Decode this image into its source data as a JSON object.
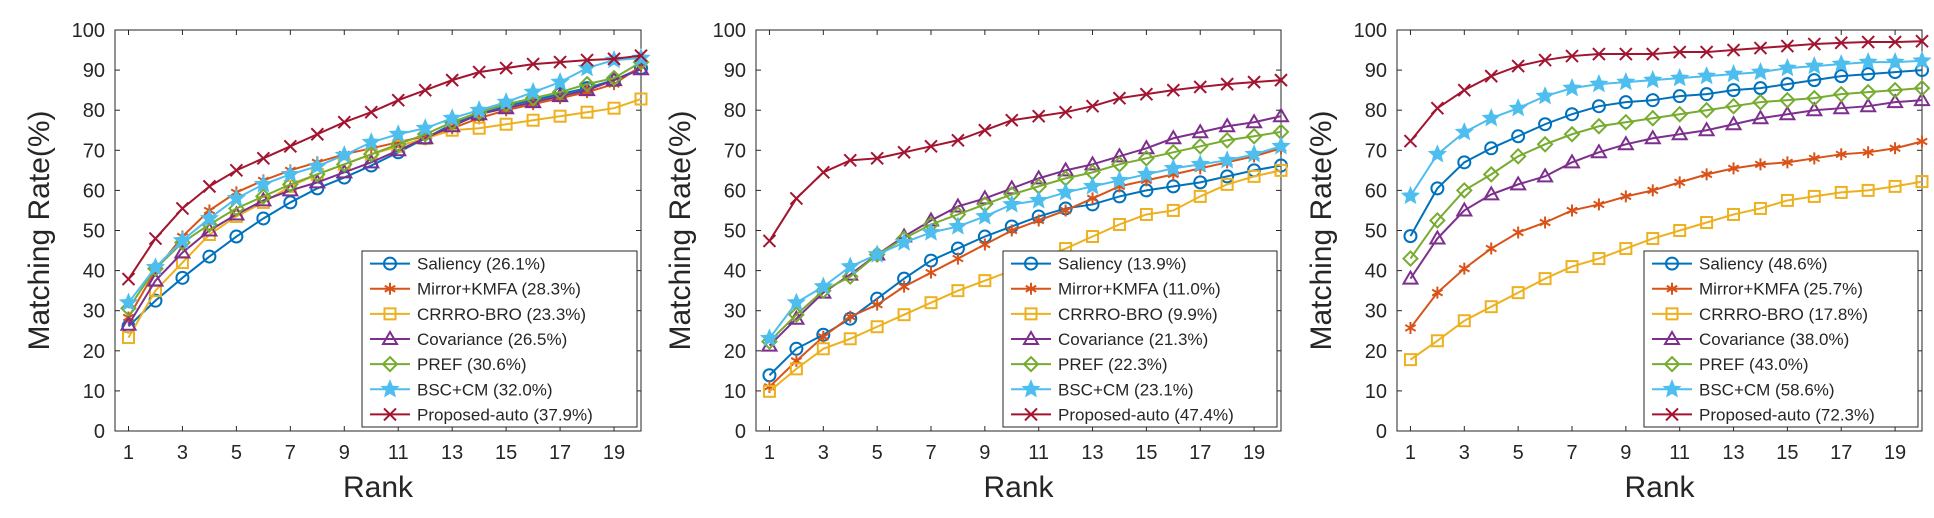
{
  "chart_data": [
    {
      "type": "line",
      "xlabel": "Rank",
      "ylabel": "Matching Rate(%)",
      "xlim": [
        0.5,
        20
      ],
      "ylim": [
        0,
        100
      ],
      "xticks": [
        "1",
        "3",
        "5",
        "7",
        "9",
        "11",
        "13",
        "15",
        "17",
        "19"
      ],
      "yticks": [
        "0",
        "10",
        "20",
        "30",
        "40",
        "50",
        "60",
        "70",
        "80",
        "90",
        "100"
      ],
      "grid": false,
      "legend": "bottom-right",
      "x": [
        1,
        2,
        3,
        4,
        5,
        6,
        7,
        8,
        9,
        10,
        11,
        12,
        13,
        14,
        15,
        16,
        17,
        18,
        19,
        20
      ],
      "series": [
        {
          "name": "Saliency (26.1%)",
          "values": [
            26.1,
            32.5,
            38.2,
            43.5,
            48.5,
            53.0,
            57.0,
            60.5,
            63.2,
            66.2,
            69.5,
            73.0,
            76.5,
            79.0,
            81.0,
            82.5,
            84.0,
            85.5,
            87.5,
            90.5
          ]
        },
        {
          "name": "Mirror+KMFA (28.3%)",
          "values": [
            28.3,
            40.0,
            48.5,
            55.0,
            59.5,
            62.5,
            65.0,
            67.0,
            69.0,
            70.5,
            72.0,
            73.5,
            75.5,
            78.0,
            80.0,
            81.5,
            83.0,
            84.5,
            86.5,
            91.0
          ]
        },
        {
          "name": "CRRRO-BRO (23.3%)",
          "values": [
            23.3,
            35.0,
            42.0,
            49.0,
            53.5,
            57.0,
            61.0,
            64.0,
            66.5,
            69.0,
            71.0,
            73.0,
            75.0,
            75.5,
            76.5,
            77.5,
            78.5,
            79.5,
            80.5,
            82.8
          ]
        },
        {
          "name": "Covariance (26.5%)",
          "values": [
            26.5,
            37.5,
            44.5,
            50.0,
            54.0,
            57.5,
            60.0,
            62.0,
            64.5,
            67.0,
            70.0,
            73.0,
            76.0,
            79.0,
            80.5,
            82.0,
            83.5,
            85.0,
            87.5,
            90.2
          ]
        },
        {
          "name": "PREF (30.6%)",
          "values": [
            30.6,
            40.5,
            47.0,
            51.5,
            55.5,
            58.5,
            61.5,
            64.0,
            66.5,
            69.0,
            71.5,
            74.0,
            77.0,
            79.5,
            81.5,
            83.0,
            84.5,
            86.5,
            88.0,
            92.0
          ]
        },
        {
          "name": "BSC+CM (32.0%)",
          "values": [
            32.0,
            40.8,
            47.5,
            53.0,
            58.0,
            61.5,
            64.0,
            66.0,
            68.8,
            72.0,
            74.0,
            75.5,
            78.0,
            80.0,
            82.0,
            84.5,
            87.0,
            90.5,
            92.5,
            93.0
          ]
        },
        {
          "name": "Proposed-auto (37.9%)",
          "values": [
            37.9,
            48.0,
            55.5,
            61.0,
            65.0,
            68.0,
            71.0,
            74.0,
            77.0,
            79.5,
            82.5,
            85.0,
            87.5,
            89.5,
            90.5,
            91.5,
            92.0,
            92.5,
            92.8,
            93.6
          ]
        }
      ]
    },
    {
      "type": "line",
      "xlabel": "Rank",
      "ylabel": "Matching Rate(%)",
      "xlim": [
        0.5,
        20
      ],
      "ylim": [
        0,
        100
      ],
      "xticks": [
        "1",
        "3",
        "5",
        "7",
        "9",
        "11",
        "13",
        "15",
        "17",
        "19"
      ],
      "yticks": [
        "0",
        "10",
        "20",
        "30",
        "40",
        "50",
        "60",
        "70",
        "80",
        "90",
        "100"
      ],
      "grid": false,
      "legend": "bottom-right",
      "x": [
        1,
        2,
        3,
        4,
        5,
        6,
        7,
        8,
        9,
        10,
        11,
        12,
        13,
        14,
        15,
        16,
        17,
        18,
        19,
        20
      ],
      "series": [
        {
          "name": "Saliency (13.9%)",
          "values": [
            13.9,
            20.5,
            24.0,
            28.0,
            33.0,
            38.0,
            42.5,
            45.5,
            48.5,
            51.0,
            53.5,
            55.5,
            56.5,
            58.5,
            60.0,
            61.0,
            62.0,
            63.5,
            65.0,
            66.2
          ]
        },
        {
          "name": "Mirror+KMFA (11.0%)",
          "values": [
            11.0,
            17.5,
            23.5,
            28.5,
            31.5,
            36.0,
            39.5,
            43.0,
            46.5,
            50.0,
            52.5,
            55.0,
            58.0,
            61.0,
            62.5,
            64.0,
            65.5,
            67.0,
            68.5,
            70.5
          ]
        },
        {
          "name": "CRRRO-BRO (9.9%)",
          "values": [
            9.9,
            15.5,
            20.5,
            23.0,
            26.0,
            29.0,
            32.0,
            35.0,
            37.5,
            40.0,
            43.0,
            45.5,
            48.5,
            51.5,
            54.0,
            55.0,
            58.5,
            61.5,
            63.5,
            65.0
          ]
        },
        {
          "name": "Covariance (21.3%)",
          "values": [
            21.3,
            28.0,
            34.5,
            39.0,
            44.0,
            48.5,
            52.5,
            56.0,
            58.0,
            60.5,
            63.0,
            65.0,
            66.5,
            68.5,
            70.5,
            73.0,
            74.5,
            76.0,
            77.0,
            78.5
          ]
        },
        {
          "name": "PREF (22.3%)",
          "values": [
            22.3,
            29.0,
            35.0,
            38.5,
            44.0,
            48.0,
            51.5,
            54.0,
            56.5,
            59.0,
            61.0,
            63.0,
            64.5,
            66.5,
            68.0,
            69.5,
            71.0,
            72.5,
            73.5,
            74.6
          ]
        },
        {
          "name": "BSC+CM (23.1%)",
          "values": [
            23.1,
            32.0,
            36.0,
            41.0,
            44.0,
            47.0,
            49.5,
            51.0,
            53.5,
            56.5,
            57.5,
            59.5,
            61.0,
            62.5,
            64.0,
            65.5,
            66.5,
            67.5,
            69.0,
            71.0
          ]
        },
        {
          "name": "Proposed-auto (47.4%)",
          "values": [
            47.4,
            58.0,
            64.5,
            67.5,
            68.0,
            69.5,
            71.0,
            72.5,
            75.0,
            77.5,
            78.5,
            79.5,
            81.0,
            83.0,
            84.0,
            85.0,
            85.8,
            86.5,
            87.0,
            87.5
          ]
        }
      ]
    },
    {
      "type": "line",
      "xlabel": "Rank",
      "ylabel": "Matching Rate(%)",
      "xlim": [
        0.5,
        20
      ],
      "ylim": [
        0,
        100
      ],
      "xticks": [
        "1",
        "3",
        "5",
        "7",
        "9",
        "11",
        "13",
        "15",
        "17",
        "19"
      ],
      "yticks": [
        "0",
        "10",
        "20",
        "30",
        "40",
        "50",
        "60",
        "70",
        "80",
        "90",
        "100"
      ],
      "grid": false,
      "legend": "bottom-right",
      "x": [
        1,
        2,
        3,
        4,
        5,
        6,
        7,
        8,
        9,
        10,
        11,
        12,
        13,
        14,
        15,
        16,
        17,
        18,
        19,
        20
      ],
      "series": [
        {
          "name": "Saliency (48.6%)",
          "values": [
            48.6,
            60.5,
            67.0,
            70.5,
            73.5,
            76.5,
            79.0,
            81.0,
            82.0,
            82.5,
            83.5,
            84.0,
            85.0,
            85.5,
            86.5,
            87.5,
            88.5,
            89.0,
            89.5,
            90.0
          ]
        },
        {
          "name": "Mirror+KMFA (25.7%)",
          "values": [
            25.7,
            34.5,
            40.5,
            45.5,
            49.5,
            52.0,
            55.0,
            56.5,
            58.5,
            60.0,
            62.0,
            64.0,
            65.5,
            66.5,
            67.0,
            68.0,
            69.0,
            69.5,
            70.5,
            72.2
          ]
        },
        {
          "name": "CRRRO-BRO (17.8%)",
          "values": [
            17.8,
            22.5,
            27.5,
            31.0,
            34.5,
            38.0,
            41.0,
            43.0,
            45.5,
            48.0,
            50.0,
            52.0,
            54.0,
            55.5,
            57.5,
            58.5,
            59.5,
            60.0,
            61.0,
            62.2
          ]
        },
        {
          "name": "Covariance (38.0%)",
          "values": [
            38.0,
            48.0,
            55.0,
            59.0,
            61.5,
            63.5,
            67.0,
            69.5,
            71.5,
            73.0,
            74.0,
            75.0,
            76.5,
            78.0,
            79.0,
            80.0,
            80.5,
            81.0,
            82.0,
            82.5
          ]
        },
        {
          "name": "PREF (43.0%)",
          "values": [
            43.0,
            52.5,
            60.0,
            64.0,
            68.5,
            71.5,
            74.0,
            76.0,
            77.0,
            78.0,
            79.0,
            80.0,
            81.0,
            82.0,
            82.5,
            83.0,
            84.0,
            84.5,
            85.0,
            85.5
          ]
        },
        {
          "name": "BSC+CM (58.6%)",
          "values": [
            58.6,
            69.0,
            74.5,
            78.0,
            80.5,
            83.5,
            85.5,
            86.5,
            87.0,
            87.5,
            88.0,
            88.5,
            89.0,
            89.5,
            90.5,
            91.0,
            91.5,
            92.0,
            92.0,
            92.3
          ]
        },
        {
          "name": "Proposed-auto (72.3%)",
          "values": [
            72.3,
            80.5,
            85.0,
            88.5,
            91.0,
            92.5,
            93.5,
            94.0,
            94.0,
            94.0,
            94.5,
            94.5,
            95.0,
            95.5,
            96.0,
            96.5,
            96.8,
            97.0,
            97.0,
            97.2
          ]
        }
      ]
    }
  ],
  "series_styles": [
    {
      "color": "#0072BD",
      "marker": "circle"
    },
    {
      "color": "#D95319",
      "marker": "asterisk"
    },
    {
      "color": "#EDB120",
      "marker": "square"
    },
    {
      "color": "#7E2F8E",
      "marker": "triangle"
    },
    {
      "color": "#77AC30",
      "marker": "diamond"
    },
    {
      "color": "#4DBEEE",
      "marker": "star"
    },
    {
      "color": "#A2142F",
      "marker": "cross"
    }
  ]
}
